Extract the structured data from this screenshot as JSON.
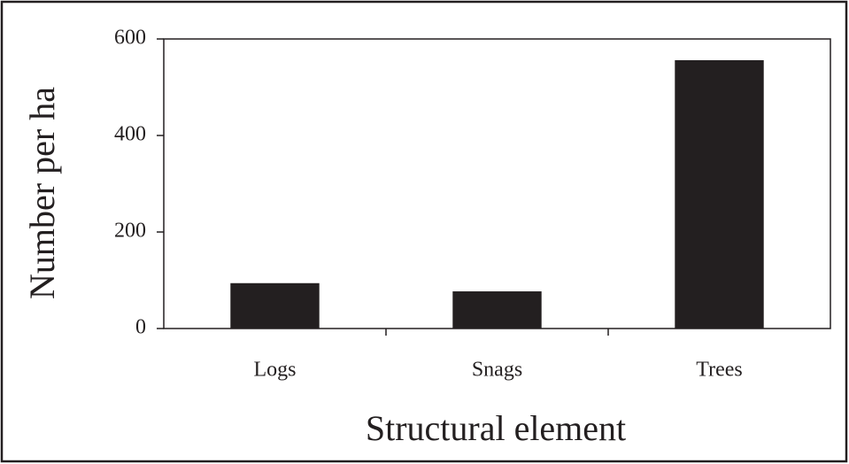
{
  "chart_data": {
    "type": "bar",
    "x_label": "Structural element",
    "y_label": "Number per ha",
    "categories": [
      "Logs",
      "Snags",
      "Trees"
    ],
    "values": [
      94,
      77,
      556
    ],
    "color": "#231f20",
    "ylim": [
      0,
      600
    ],
    "yticks": [
      0,
      200,
      400,
      600
    ],
    "grid": false
  }
}
